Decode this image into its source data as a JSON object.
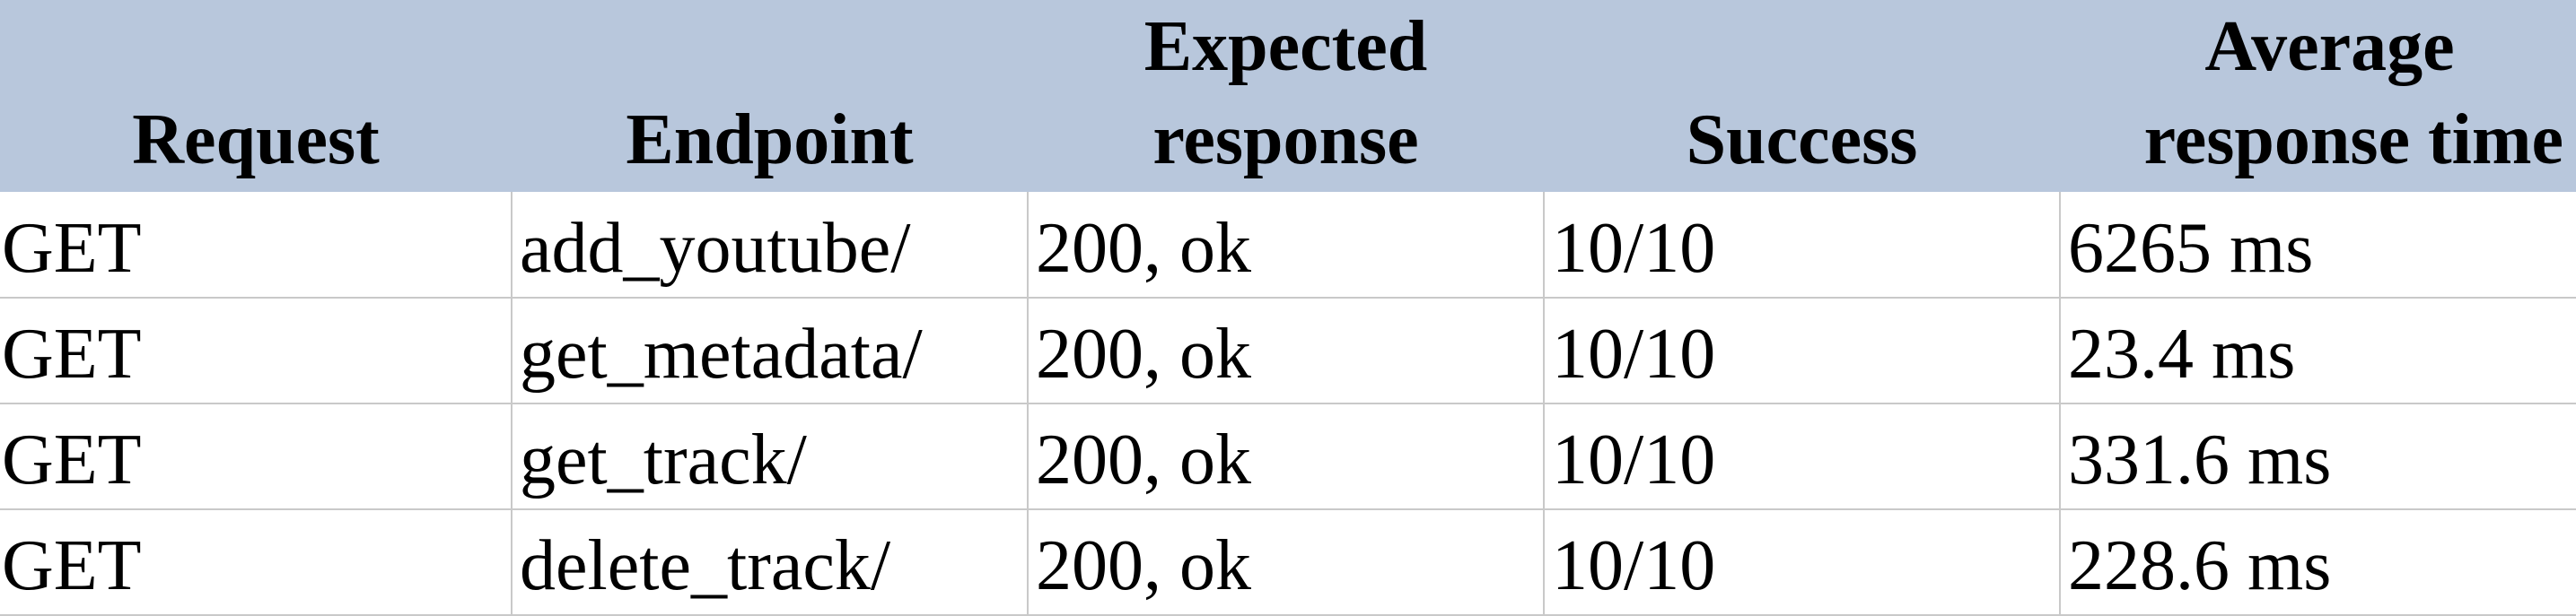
{
  "table": {
    "headers": {
      "request": "Request",
      "endpoint": "Endpoint",
      "expected_line1": "Expected",
      "expected_line2": "response",
      "success": "Success",
      "avg_line1": "Average",
      "avg_line2": "response time"
    },
    "rows": [
      {
        "request": "GET",
        "endpoint": "add_youtube/",
        "expected": "200, ok",
        "success": "10/10",
        "avg_time": "6265 ms"
      },
      {
        "request": "GET",
        "endpoint": "get_metadata/",
        "expected": "200, ok",
        "success": "10/10",
        "avg_time": "23.4 ms"
      },
      {
        "request": "GET",
        "endpoint": "get_track/",
        "expected": "200, ok",
        "success": "10/10",
        "avg_time": "331.6 ms"
      },
      {
        "request": "GET",
        "endpoint": "delete_track/",
        "expected": "200, ok",
        "success": "10/10",
        "avg_time": "228.6 ms"
      }
    ],
    "colors": {
      "header_bg": "#b8c7dc",
      "grid": "#c9c9c9"
    }
  }
}
